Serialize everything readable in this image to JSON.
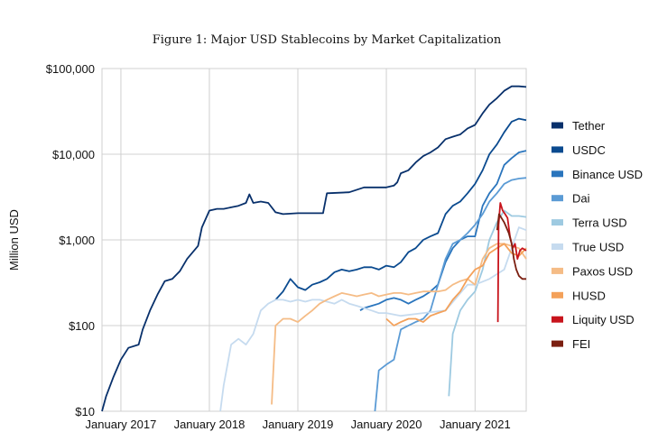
{
  "chart_data": {
    "type": "line",
    "title": "Figure 1: Major USD Stablecoins by Market Capitalization",
    "xlabel": "",
    "ylabel": "Million USD",
    "y_scale": "log",
    "ylim": [
      10,
      100000
    ],
    "xlim": [
      "2016-10-15",
      "2021-07-31"
    ],
    "grid": true,
    "legend_position": "right",
    "y_ticks": [
      {
        "value": 10,
        "label": "$10"
      },
      {
        "value": 100,
        "label": "$100"
      },
      {
        "value": 1000,
        "label": "$1,000"
      },
      {
        "value": 10000,
        "label": "$10,000"
      },
      {
        "value": 100000,
        "label": "$100,000"
      }
    ],
    "x_ticks": [
      {
        "value": "2017-01-01",
        "label": "January 2017"
      },
      {
        "value": "2018-01-01",
        "label": "January 2018"
      },
      {
        "value": "2019-01-01",
        "label": "January 2019"
      },
      {
        "value": "2020-01-01",
        "label": "January 2020"
      },
      {
        "value": "2021-01-01",
        "label": "January 2021"
      }
    ],
    "series": [
      {
        "name": "Tether",
        "color": "#08306b",
        "points": [
          [
            "2016-10-15",
            10
          ],
          [
            "2016-11-01",
            15
          ],
          [
            "2016-12-01",
            25
          ],
          [
            "2017-01-01",
            40
          ],
          [
            "2017-02-01",
            55
          ],
          [
            "2017-03-15",
            60
          ],
          [
            "2017-04-01",
            90
          ],
          [
            "2017-05-01",
            150
          ],
          [
            "2017-06-01",
            230
          ],
          [
            "2017-07-01",
            330
          ],
          [
            "2017-08-01",
            350
          ],
          [
            "2017-09-01",
            430
          ],
          [
            "2017-10-01",
            600
          ],
          [
            "2017-11-15",
            850
          ],
          [
            "2017-12-01",
            1400
          ],
          [
            "2018-01-01",
            2200
          ],
          [
            "2018-02-01",
            2300
          ],
          [
            "2018-03-01",
            2300
          ],
          [
            "2018-04-01",
            2400
          ],
          [
            "2018-05-01",
            2500
          ],
          [
            "2018-06-01",
            2700
          ],
          [
            "2018-06-15",
            3400
          ],
          [
            "2018-07-01",
            2700
          ],
          [
            "2018-08-01",
            2800
          ],
          [
            "2018-09-01",
            2700
          ],
          [
            "2018-10-01",
            2100
          ],
          [
            "2018-11-01",
            2000
          ],
          [
            "2019-01-01",
            2050
          ],
          [
            "2019-03-01",
            2050
          ],
          [
            "2019-04-15",
            2050
          ],
          [
            "2019-05-01",
            3500
          ],
          [
            "2019-08-01",
            3600
          ],
          [
            "2019-10-01",
            4100
          ],
          [
            "2020-01-01",
            4100
          ],
          [
            "2020-02-01",
            4300
          ],
          [
            "2020-02-15",
            4700
          ],
          [
            "2020-03-01",
            6000
          ],
          [
            "2020-04-01",
            6500
          ],
          [
            "2020-05-01",
            8000
          ],
          [
            "2020-06-01",
            9500
          ],
          [
            "2020-07-01",
            10500
          ],
          [
            "2020-08-01",
            12000
          ],
          [
            "2020-09-01",
            15000
          ],
          [
            "2020-10-01",
            16000
          ],
          [
            "2020-11-01",
            17000
          ],
          [
            "2020-12-01",
            20000
          ],
          [
            "2021-01-01",
            22000
          ],
          [
            "2021-02-01",
            30000
          ],
          [
            "2021-03-01",
            38000
          ],
          [
            "2021-04-01",
            45000
          ],
          [
            "2021-05-01",
            55000
          ],
          [
            "2021-06-01",
            62000
          ],
          [
            "2021-07-01",
            62000
          ],
          [
            "2021-07-31",
            61000
          ]
        ]
      },
      {
        "name": "USDC",
        "color": "#0a4a8f",
        "points": [
          [
            "2018-10-01",
            200
          ],
          [
            "2018-11-01",
            250
          ],
          [
            "2018-12-01",
            350
          ],
          [
            "2019-01-01",
            280
          ],
          [
            "2019-02-01",
            260
          ],
          [
            "2019-03-01",
            300
          ],
          [
            "2019-04-01",
            320
          ],
          [
            "2019-05-01",
            350
          ],
          [
            "2019-06-01",
            420
          ],
          [
            "2019-07-01",
            450
          ],
          [
            "2019-08-01",
            430
          ],
          [
            "2019-09-01",
            450
          ],
          [
            "2019-10-01",
            480
          ],
          [
            "2019-11-01",
            480
          ],
          [
            "2019-12-01",
            450
          ],
          [
            "2020-01-01",
            500
          ],
          [
            "2020-02-01",
            480
          ],
          [
            "2020-03-01",
            550
          ],
          [
            "2020-04-01",
            720
          ],
          [
            "2020-05-01",
            800
          ],
          [
            "2020-06-01",
            1000
          ],
          [
            "2020-07-01",
            1100
          ],
          [
            "2020-08-01",
            1200
          ],
          [
            "2020-09-01",
            2000
          ],
          [
            "2020-10-01",
            2500
          ],
          [
            "2020-11-01",
            2800
          ],
          [
            "2020-12-01",
            3500
          ],
          [
            "2021-01-01",
            4500
          ],
          [
            "2021-02-01",
            6500
          ],
          [
            "2021-03-01",
            10000
          ],
          [
            "2021-04-01",
            13000
          ],
          [
            "2021-05-01",
            18000
          ],
          [
            "2021-06-01",
            24000
          ],
          [
            "2021-07-01",
            26000
          ],
          [
            "2021-07-31",
            25000
          ]
        ]
      },
      {
        "name": "Binance USD",
        "color": "#2a75bd",
        "points": [
          [
            "2019-09-15",
            150
          ],
          [
            "2019-10-01",
            160
          ],
          [
            "2019-11-01",
            170
          ],
          [
            "2019-12-01",
            180
          ],
          [
            "2020-01-01",
            200
          ],
          [
            "2020-02-01",
            210
          ],
          [
            "2020-03-01",
            200
          ],
          [
            "2020-04-01",
            180
          ],
          [
            "2020-05-01",
            200
          ],
          [
            "2020-06-01",
            220
          ],
          [
            "2020-07-01",
            250
          ],
          [
            "2020-08-01",
            300
          ],
          [
            "2020-09-01",
            550
          ],
          [
            "2020-10-01",
            800
          ],
          [
            "2020-11-01",
            1000
          ],
          [
            "2020-12-01",
            1100
          ],
          [
            "2021-01-01",
            1100
          ],
          [
            "2021-02-01",
            2500
          ],
          [
            "2021-03-01",
            3500
          ],
          [
            "2021-04-01",
            4500
          ],
          [
            "2021-05-01",
            7500
          ],
          [
            "2021-06-01",
            9000
          ],
          [
            "2021-07-01",
            10500
          ],
          [
            "2021-07-31",
            11000
          ]
        ]
      },
      {
        "name": "Dai",
        "color": "#5b9bd5",
        "points": [
          [
            "2019-11-15",
            10
          ],
          [
            "2019-12-01",
            30
          ],
          [
            "2020-01-01",
            35
          ],
          [
            "2020-02-01",
            40
          ],
          [
            "2020-03-01",
            90
          ],
          [
            "2020-04-01",
            100
          ],
          [
            "2020-05-01",
            110
          ],
          [
            "2020-06-01",
            120
          ],
          [
            "2020-07-01",
            150
          ],
          [
            "2020-08-01",
            300
          ],
          [
            "2020-09-01",
            600
          ],
          [
            "2020-10-01",
            900
          ],
          [
            "2020-11-01",
            1000
          ],
          [
            "2020-12-01",
            1200
          ],
          [
            "2021-01-01",
            1500
          ],
          [
            "2021-02-01",
            2000
          ],
          [
            "2021-03-01",
            2800
          ],
          [
            "2021-04-01",
            3500
          ],
          [
            "2021-05-01",
            4500
          ],
          [
            "2021-06-01",
            5000
          ],
          [
            "2021-07-01",
            5200
          ],
          [
            "2021-07-31",
            5300
          ]
        ]
      },
      {
        "name": "Terra USD",
        "color": "#9ecae1",
        "points": [
          [
            "2020-09-15",
            15
          ],
          [
            "2020-10-01",
            80
          ],
          [
            "2020-11-01",
            150
          ],
          [
            "2020-12-01",
            200
          ],
          [
            "2021-01-01",
            250
          ],
          [
            "2021-02-01",
            450
          ],
          [
            "2021-03-01",
            1000
          ],
          [
            "2021-04-01",
            1600
          ],
          [
            "2021-05-01",
            2200
          ],
          [
            "2021-06-01",
            1900
          ],
          [
            "2021-07-01",
            1900
          ],
          [
            "2021-07-31",
            1850
          ]
        ]
      },
      {
        "name": "True USD",
        "color": "#c6dbef",
        "points": [
          [
            "2018-02-15",
            10
          ],
          [
            "2018-03-01",
            20
          ],
          [
            "2018-04-01",
            60
          ],
          [
            "2018-05-01",
            70
          ],
          [
            "2018-06-01",
            60
          ],
          [
            "2018-07-01",
            80
          ],
          [
            "2018-08-01",
            150
          ],
          [
            "2018-09-01",
            180
          ],
          [
            "2018-10-01",
            200
          ],
          [
            "2018-11-01",
            200
          ],
          [
            "2018-12-01",
            190
          ],
          [
            "2019-01-01",
            200
          ],
          [
            "2019-02-01",
            190
          ],
          [
            "2019-03-01",
            200
          ],
          [
            "2019-04-01",
            200
          ],
          [
            "2019-05-01",
            190
          ],
          [
            "2019-06-01",
            180
          ],
          [
            "2019-07-01",
            200
          ],
          [
            "2019-08-01",
            180
          ],
          [
            "2019-09-01",
            170
          ],
          [
            "2019-10-01",
            160
          ],
          [
            "2019-11-01",
            150
          ],
          [
            "2019-12-01",
            140
          ],
          [
            "2020-01-01",
            140
          ],
          [
            "2020-03-01",
            130
          ],
          [
            "2020-06-01",
            140
          ],
          [
            "2020-09-01",
            150
          ],
          [
            "2020-12-01",
            300
          ],
          [
            "2021-01-01",
            300
          ],
          [
            "2021-03-01",
            350
          ],
          [
            "2021-05-01",
            450
          ],
          [
            "2021-07-01",
            1400
          ],
          [
            "2021-07-31",
            1300
          ]
        ]
      },
      {
        "name": "Paxos USD",
        "color": "#f5bc86",
        "points": [
          [
            "2018-09-15",
            12
          ],
          [
            "2018-10-01",
            100
          ],
          [
            "2018-11-01",
            120
          ],
          [
            "2018-12-01",
            120
          ],
          [
            "2019-01-01",
            110
          ],
          [
            "2019-02-01",
            130
          ],
          [
            "2019-03-01",
            150
          ],
          [
            "2019-04-01",
            180
          ],
          [
            "2019-05-01",
            200
          ],
          [
            "2019-06-01",
            220
          ],
          [
            "2019-07-01",
            240
          ],
          [
            "2019-08-01",
            230
          ],
          [
            "2019-09-01",
            220
          ],
          [
            "2019-10-01",
            230
          ],
          [
            "2019-11-01",
            240
          ],
          [
            "2019-12-01",
            220
          ],
          [
            "2020-01-01",
            230
          ],
          [
            "2020-02-01",
            240
          ],
          [
            "2020-03-01",
            240
          ],
          [
            "2020-04-01",
            230
          ],
          [
            "2020-05-01",
            240
          ],
          [
            "2020-06-01",
            250
          ],
          [
            "2020-07-01",
            250
          ],
          [
            "2020-08-01",
            250
          ],
          [
            "2020-09-01",
            260
          ],
          [
            "2020-10-01",
            300
          ],
          [
            "2020-11-01",
            330
          ],
          [
            "2020-12-01",
            350
          ],
          [
            "2021-01-01",
            300
          ],
          [
            "2021-02-01",
            600
          ],
          [
            "2021-03-01",
            800
          ],
          [
            "2021-04-01",
            900
          ],
          [
            "2021-05-01",
            900
          ],
          [
            "2021-06-01",
            850
          ],
          [
            "2021-07-01",
            800
          ],
          [
            "2021-07-31",
            600
          ]
        ]
      },
      {
        "name": "HUSD",
        "color": "#f4a15a",
        "points": [
          [
            "2020-01-01",
            120
          ],
          [
            "2020-02-01",
            100
          ],
          [
            "2020-03-01",
            110
          ],
          [
            "2020-04-01",
            120
          ],
          [
            "2020-05-01",
            120
          ],
          [
            "2020-06-01",
            110
          ],
          [
            "2020-07-01",
            130
          ],
          [
            "2020-08-01",
            140
          ],
          [
            "2020-09-01",
            150
          ],
          [
            "2020-10-01",
            200
          ],
          [
            "2020-11-01",
            250
          ],
          [
            "2020-12-01",
            350
          ],
          [
            "2021-01-01",
            450
          ],
          [
            "2021-02-01",
            500
          ],
          [
            "2021-03-01",
            700
          ],
          [
            "2021-04-01",
            800
          ],
          [
            "2021-05-01",
            900
          ],
          [
            "2021-06-01",
            700
          ],
          [
            "2021-07-01",
            650
          ],
          [
            "2021-07-31",
            800
          ]
        ]
      },
      {
        "name": "Liquity USD",
        "color": "#c8141c",
        "points": [
          [
            "2021-04-05",
            110
          ],
          [
            "2021-04-08",
            1500
          ],
          [
            "2021-04-15",
            2700
          ],
          [
            "2021-04-25",
            2200
          ],
          [
            "2021-05-05",
            2000
          ],
          [
            "2021-05-15",
            1800
          ],
          [
            "2021-05-25",
            1100
          ],
          [
            "2021-06-05",
            800
          ],
          [
            "2021-06-15",
            900
          ],
          [
            "2021-06-25",
            600
          ],
          [
            "2021-07-05",
            750
          ],
          [
            "2021-07-15",
            800
          ],
          [
            "2021-07-31",
            750
          ]
        ]
      },
      {
        "name": "FEI",
        "color": "#7b1f10",
        "points": [
          [
            "2021-04-02",
            1300
          ],
          [
            "2021-04-10",
            2000
          ],
          [
            "2021-04-20",
            1800
          ],
          [
            "2021-05-01",
            1600
          ],
          [
            "2021-05-10",
            1400
          ],
          [
            "2021-05-20",
            1200
          ],
          [
            "2021-06-01",
            900
          ],
          [
            "2021-06-10",
            600
          ],
          [
            "2021-06-20",
            450
          ],
          [
            "2021-07-01",
            380
          ],
          [
            "2021-07-15",
            350
          ],
          [
            "2021-07-31",
            350
          ]
        ]
      }
    ]
  }
}
